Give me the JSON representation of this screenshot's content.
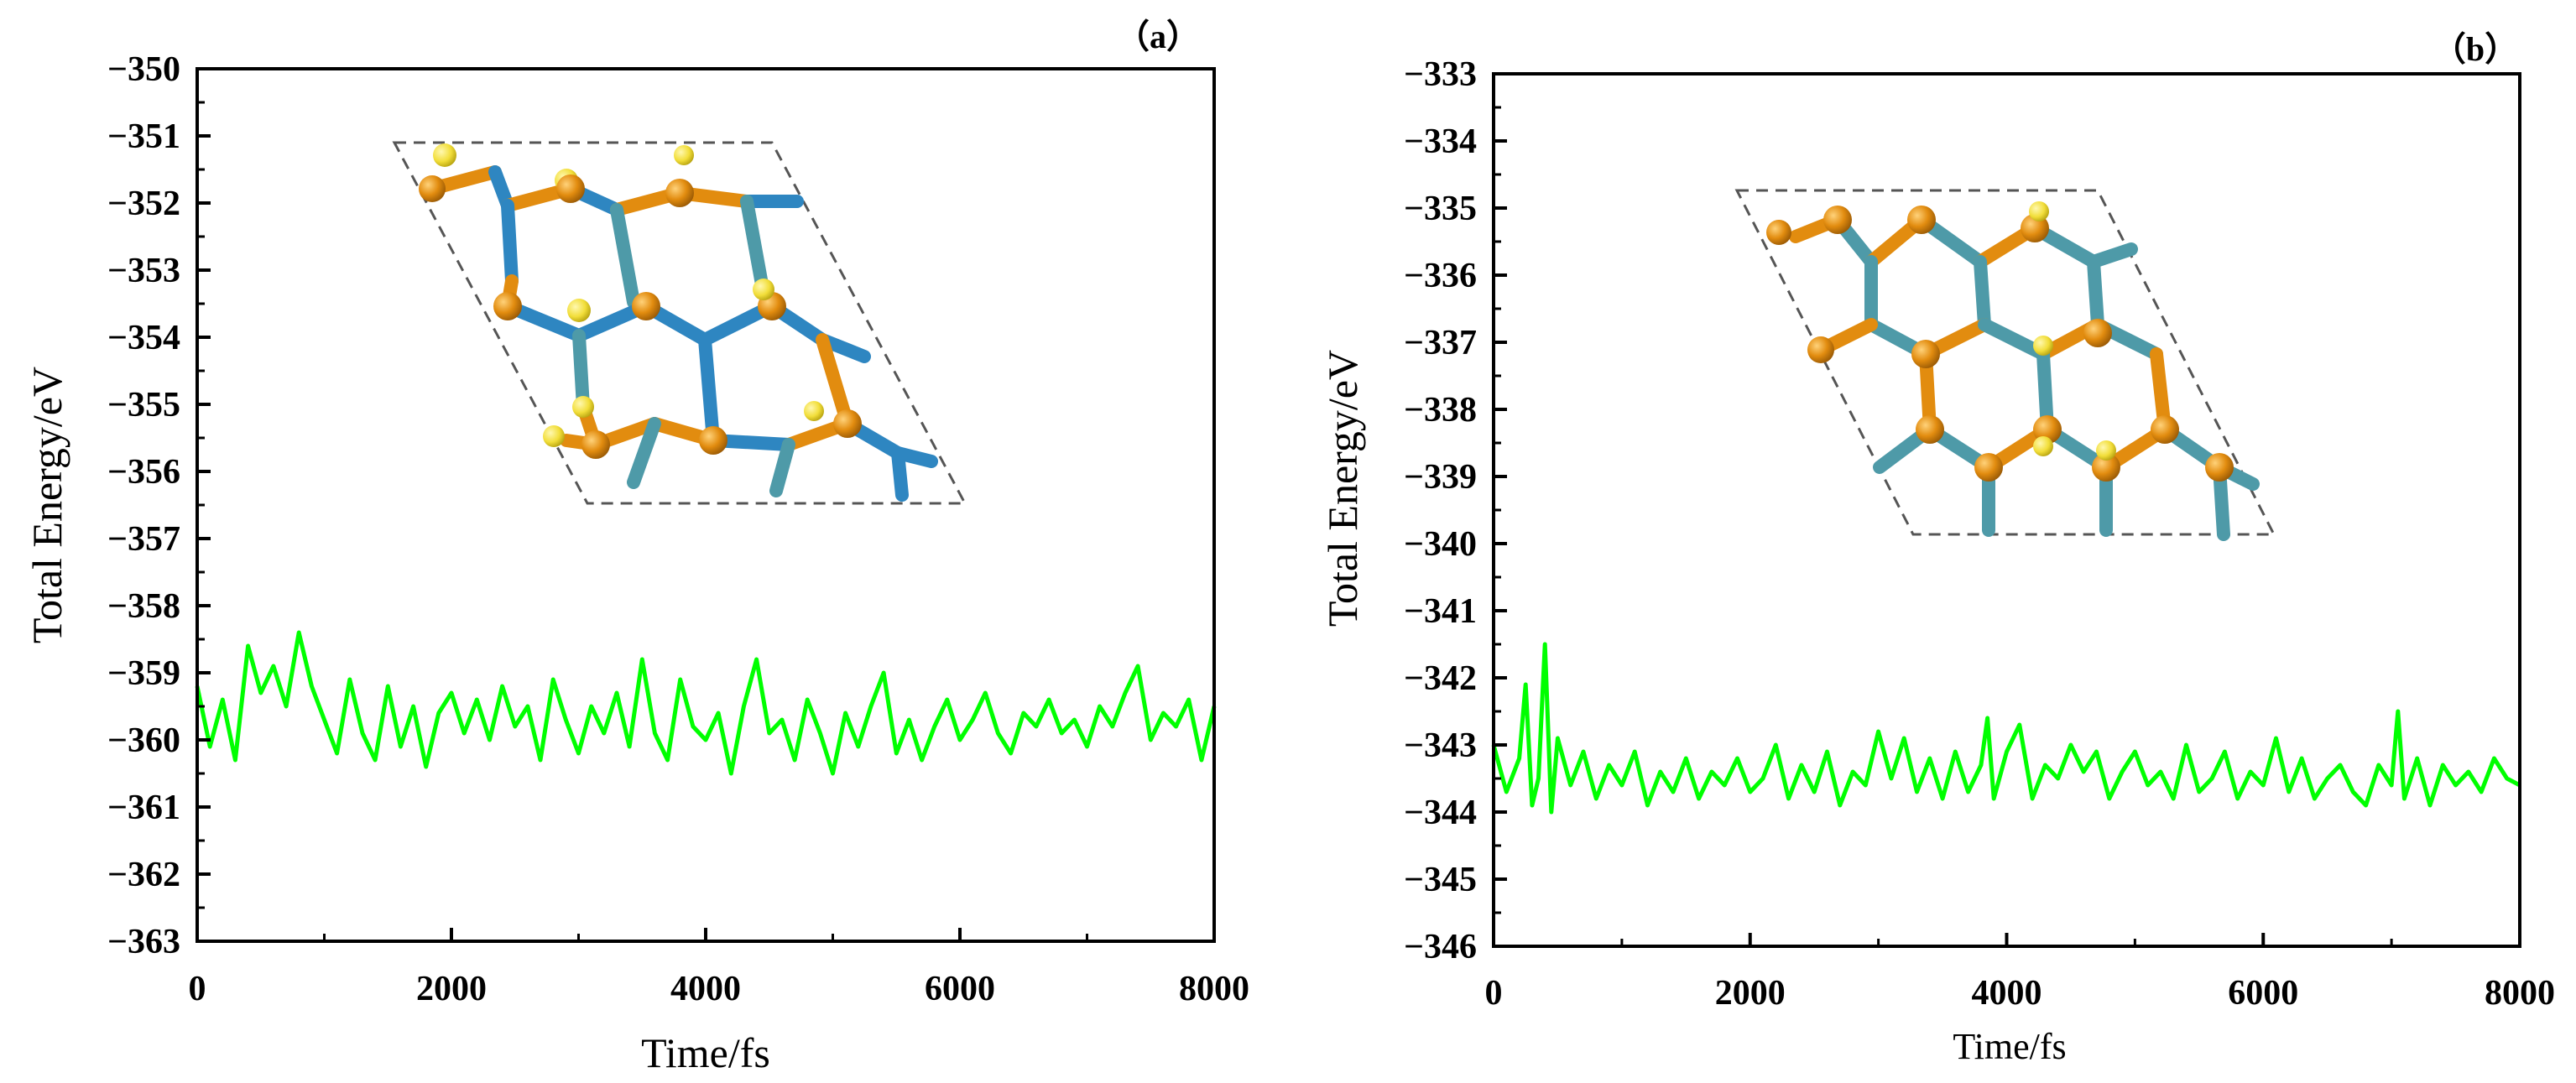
{
  "figure": {
    "panel_count": 2
  },
  "colors": {
    "series": "#00ff00",
    "axis": "#000000",
    "atom_orange": "#e28c0f",
    "atom_blue": "#2e86c1",
    "atom_teal": "#4e9aa8",
    "atom_yellow": "#f2de3a"
  },
  "icons": {
    "inset": "crystal-structure-icon"
  },
  "chart_data": [
    {
      "type": "line",
      "panel_label": "（a）",
      "title": "",
      "xlabel": "Time/fs",
      "ylabel": "Total Energy/eV",
      "xlim": [
        0,
        8000
      ],
      "ylim": [
        -363,
        -350
      ],
      "xticks": [
        0,
        2000,
        4000,
        6000,
        8000
      ],
      "xtick_labels": [
        "0",
        "2000",
        "4000",
        "6000",
        "8000"
      ],
      "yticks": [
        -350,
        -351,
        -352,
        -353,
        -354,
        -355,
        -356,
        -357,
        -358,
        -359,
        -360,
        -361,
        -362,
        -363
      ],
      "ytick_labels": [
        "−350",
        "−351",
        "−352",
        "−353",
        "−354",
        "−355",
        "−356",
        "−357",
        "−358",
        "−359",
        "−360",
        "−361",
        "−362",
        "−363"
      ],
      "grid": false,
      "series": [
        {
          "name": "Total Energy",
          "color": "#00ff00",
          "x": [
            0,
            100,
            200,
            300,
            400,
            500,
            600,
            700,
            800,
            900,
            1000,
            1100,
            1200,
            1300,
            1400,
            1500,
            1600,
            1700,
            1800,
            1900,
            2000,
            2100,
            2200,
            2300,
            2400,
            2500,
            2600,
            2700,
            2800,
            2900,
            3000,
            3100,
            3200,
            3300,
            3400,
            3500,
            3600,
            3700,
            3800,
            3900,
            4000,
            4100,
            4200,
            4300,
            4400,
            4500,
            4600,
            4700,
            4800,
            4900,
            5000,
            5100,
            5200,
            5300,
            5400,
            5500,
            5600,
            5700,
            5800,
            5900,
            6000,
            6100,
            6200,
            6300,
            6400,
            6500,
            6600,
            6700,
            6800,
            6900,
            7000,
            7100,
            7200,
            7300,
            7400,
            7500,
            7600,
            7700,
            7800,
            7900,
            8000
          ],
          "y": [
            -359.2,
            -360.1,
            -359.4,
            -360.3,
            -358.6,
            -359.3,
            -358.9,
            -359.5,
            -358.4,
            -359.2,
            -359.7,
            -360.2,
            -359.1,
            -359.9,
            -360.3,
            -359.2,
            -360.1,
            -359.5,
            -360.4,
            -359.6,
            -359.3,
            -359.9,
            -359.4,
            -360.0,
            -359.2,
            -359.8,
            -359.5,
            -360.3,
            -359.1,
            -359.7,
            -360.2,
            -359.5,
            -359.9,
            -359.3,
            -360.1,
            -358.8,
            -359.9,
            -360.3,
            -359.1,
            -359.8,
            -360.0,
            -359.6,
            -360.5,
            -359.5,
            -358.8,
            -359.9,
            -359.7,
            -360.3,
            -359.4,
            -359.9,
            -360.5,
            -359.6,
            -360.1,
            -359.5,
            -359.0,
            -360.2,
            -359.7,
            -360.3,
            -359.8,
            -359.4,
            -360.0,
            -359.7,
            -359.3,
            -359.9,
            -360.2,
            -359.6,
            -359.8,
            -359.4,
            -359.9,
            -359.7,
            -360.1,
            -359.5,
            -359.8,
            -359.3,
            -358.9,
            -360.0,
            -359.6,
            -359.8,
            -359.4,
            -360.3,
            -359.5
          ]
        }
      ]
    },
    {
      "type": "line",
      "panel_label": "（b）",
      "title": "",
      "xlabel": "Time/fs",
      "ylabel": "Total Energy/eV",
      "xlim": [
        0,
        8000
      ],
      "ylim": [
        -346,
        -333
      ],
      "xticks": [
        0,
        2000,
        4000,
        6000,
        8000
      ],
      "xtick_labels": [
        "0",
        "2000",
        "4000",
        "6000",
        "8000"
      ],
      "yticks": [
        -333,
        -334,
        -335,
        -336,
        -337,
        -338,
        -339,
        -340,
        -341,
        -342,
        -343,
        -344,
        -345,
        -346
      ],
      "ytick_labels": [
        "−333",
        "−334",
        "−335",
        "−336",
        "−337",
        "−338",
        "−339",
        "−340",
        "−341",
        "−342",
        "−343",
        "−344",
        "−345",
        "−346"
      ],
      "grid": false,
      "series": [
        {
          "name": "Total Energy",
          "color": "#00ff00",
          "x": [
            0,
            100,
            200,
            250,
            300,
            350,
            400,
            450,
            500,
            600,
            700,
            800,
            900,
            1000,
            1100,
            1200,
            1300,
            1400,
            1500,
            1600,
            1700,
            1800,
            1900,
            2000,
            2100,
            2200,
            2300,
            2400,
            2500,
            2600,
            2700,
            2800,
            2900,
            3000,
            3100,
            3200,
            3300,
            3400,
            3500,
            3600,
            3700,
            3800,
            3850,
            3900,
            4000,
            4100,
            4200,
            4300,
            4400,
            4500,
            4600,
            4700,
            4800,
            4900,
            5000,
            5100,
            5200,
            5300,
            5400,
            5500,
            5600,
            5700,
            5800,
            5900,
            6000,
            6100,
            6200,
            6300,
            6400,
            6500,
            6600,
            6700,
            6800,
            6900,
            7000,
            7050,
            7100,
            7200,
            7300,
            7400,
            7500,
            7600,
            7700,
            7800,
            7900,
            8000
          ],
          "y": [
            -343.0,
            -343.7,
            -343.2,
            -342.1,
            -343.9,
            -343.5,
            -341.5,
            -344.0,
            -342.9,
            -343.6,
            -343.1,
            -343.8,
            -343.3,
            -343.6,
            -343.1,
            -343.9,
            -343.4,
            -343.7,
            -343.2,
            -343.8,
            -343.4,
            -343.6,
            -343.2,
            -343.7,
            -343.5,
            -343.0,
            -343.8,
            -343.3,
            -343.7,
            -343.1,
            -343.9,
            -343.4,
            -343.6,
            -342.8,
            -343.5,
            -342.9,
            -343.7,
            -343.2,
            -343.8,
            -343.1,
            -343.7,
            -343.3,
            -342.6,
            -343.8,
            -343.1,
            -342.7,
            -343.8,
            -343.3,
            -343.5,
            -343.0,
            -343.4,
            -343.1,
            -343.8,
            -343.4,
            -343.1,
            -343.6,
            -343.4,
            -343.8,
            -343.0,
            -343.7,
            -343.5,
            -343.1,
            -343.8,
            -343.4,
            -343.6,
            -342.9,
            -343.7,
            -343.2,
            -343.8,
            -343.5,
            -343.3,
            -343.7,
            -343.9,
            -343.3,
            -343.6,
            -342.5,
            -343.8,
            -343.2,
            -343.9,
            -343.3,
            -343.6,
            -343.4,
            -343.7,
            -343.2,
            -343.5,
            -343.6
          ]
        }
      ]
    }
  ]
}
